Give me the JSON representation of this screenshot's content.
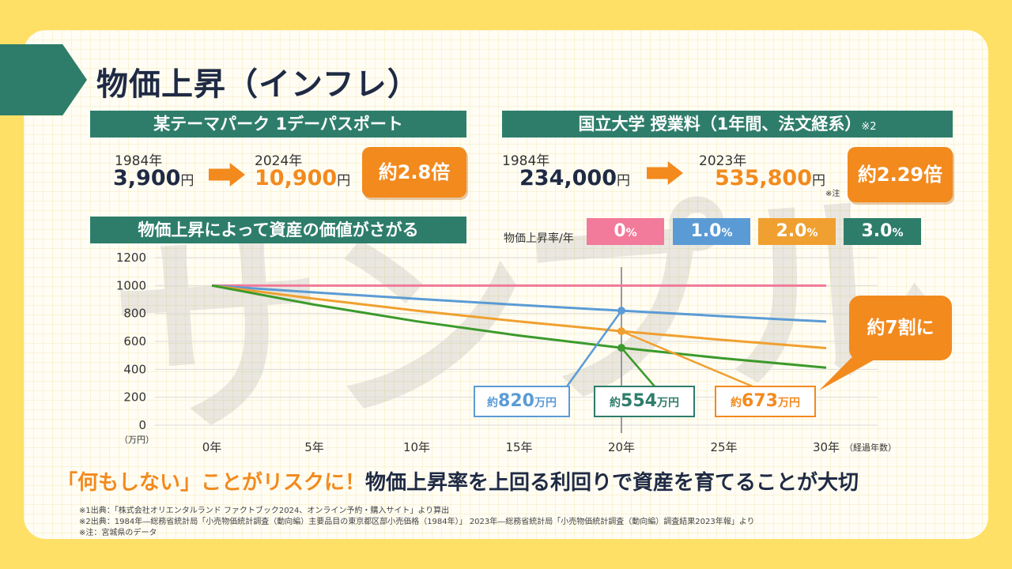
{
  "page": {
    "title": "物価上昇（インフレ）",
    "watermark": "サンプル"
  },
  "theme_park": {
    "banner": "某テーマパーク 1デーパスポート",
    "year_from": "1984年",
    "price_from": "3,900",
    "unit": "円",
    "year_to": "2024年",
    "price_to": "10,900",
    "multiplier": "約2.8倍"
  },
  "tuition": {
    "banner": "国立大学 授業料（1年間、法文経系）",
    "banner_note": "※2",
    "year_from": "1984年",
    "price_from": "234,000",
    "unit": "円",
    "year_to": "2023年",
    "price_to": "535,800",
    "note": "※注",
    "multiplier": "約2.29倍"
  },
  "chart_section": {
    "banner": "物価上昇によって資産の価値がさがる",
    "rate_label": "物価上昇率/年",
    "rates": [
      {
        "value": "0",
        "suffix": "%",
        "color": "#f27a9b"
      },
      {
        "value": "1.0",
        "suffix": "%",
        "color": "#5b9bd5"
      },
      {
        "value": "2.0",
        "suffix": "%",
        "color": "#f0a030"
      },
      {
        "value": "3.0",
        "suffix": "%",
        "color": "#2e7d6b"
      }
    ]
  },
  "chart_data": {
    "type": "line",
    "y_unit_label": "（万円）",
    "x_unit_label": "（経過年数）",
    "x": [
      0,
      5,
      10,
      15,
      20,
      25,
      30
    ],
    "x_tick_labels": [
      "0年",
      "5年",
      "10年",
      "15年",
      "20年",
      "25年",
      "30年"
    ],
    "y_ticks": [
      0,
      200,
      400,
      600,
      800,
      1000,
      1200
    ],
    "ylim": [
      0,
      1200
    ],
    "xlim": [
      0,
      30
    ],
    "grid": true,
    "series": [
      {
        "rate": "0%",
        "color": "#f27a9b",
        "values": [
          1000,
          1000,
          1000,
          1000,
          1000,
          1000,
          1000
        ]
      },
      {
        "rate": "1.0%",
        "color": "#5b9bd5",
        "values": [
          1000,
          951,
          905,
          861,
          820,
          780,
          742
        ]
      },
      {
        "rate": "2.0%",
        "color": "#f0a030",
        "values": [
          1000,
          906,
          820,
          743,
          673,
          610,
          552
        ]
      },
      {
        "rate": "3.0%",
        "color": "#3c9a2c",
        "values": [
          1000,
          863,
          744,
          642,
          554,
          478,
          412
        ]
      }
    ],
    "marker_x": 20,
    "callouts": [
      {
        "prefix": "約",
        "value": "820",
        "suffix": "万円",
        "color": "#5b9bd5"
      },
      {
        "prefix": "約",
        "value": "554",
        "suffix": "万円",
        "color": "#2e7d6b"
      },
      {
        "prefix": "約",
        "value": "673",
        "suffix": "万円",
        "color": "#f28a1e"
      }
    ],
    "bubble": "約7割に"
  },
  "message": {
    "highlight": "「何もしない」ことがリスクに！",
    "rest": "物価上昇率を上回る利回りで資産を育てることが大切"
  },
  "footnotes": [
    "※1出典：「株式会社オリエンタルランド ファクトブック2024、オンライン予約・購入サイト」より算出",
    "※2出典：1984年―総務省統計局「小売物価統計調査（動向編）主要品目の東京都区部小売価格（1984年）」 2023年―総務省統計局「小売物価統計調査（動向編）調査結果2023年報」より",
    "※注：宮城県のデータ"
  ]
}
